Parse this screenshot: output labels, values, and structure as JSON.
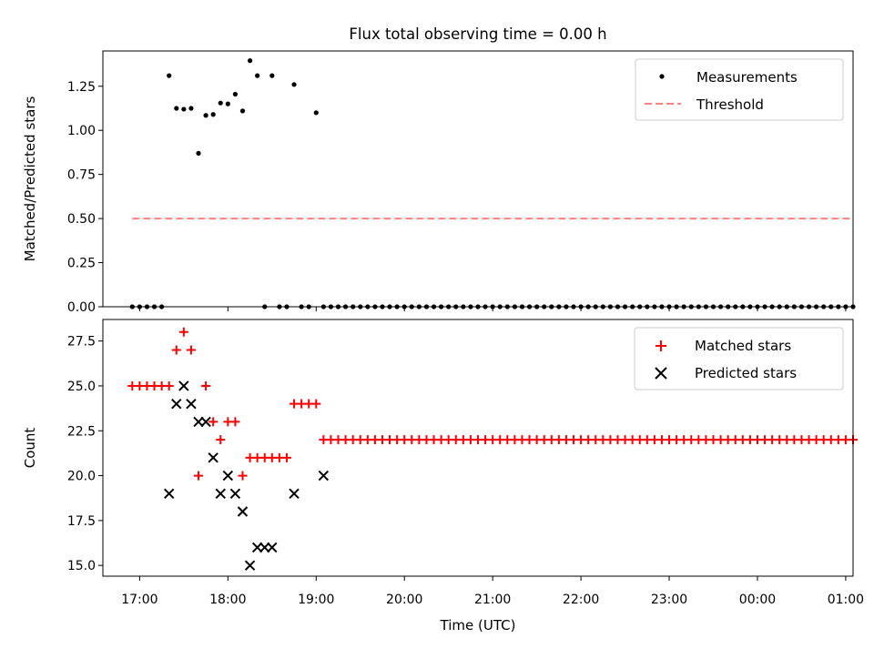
{
  "title": "Flux total observing time = 0.00 h",
  "chart_data": [
    {
      "type": "scatter",
      "ylabel": "Matched/Predicted stars",
      "ylim": [
        0,
        1.45
      ],
      "yticks": [
        "0.00",
        "0.25",
        "0.50",
        "0.75",
        "1.00",
        "1.25"
      ],
      "ytick_values": [
        0,
        0.25,
        0.5,
        0.75,
        1.0,
        1.25
      ],
      "xlim": [
        "16:35",
        "1:05"
      ],
      "legend_position": "upper right",
      "legend": [
        {
          "label": "Measurements",
          "marker": "dot",
          "color": "#000000"
        },
        {
          "label": "Threshold",
          "marker": "dashed-line",
          "color": "#ff8080"
        }
      ],
      "threshold": {
        "value": 0.5,
        "x_start": "16:55",
        "x_end": "1:05"
      },
      "measurements": {
        "x": [
          "16:55",
          "17:00",
          "17:05",
          "17:10",
          "17:15",
          "17:20",
          "17:25",
          "17:30",
          "17:35",
          "17:40",
          "17:45",
          "17:50",
          "17:55",
          "18:00",
          "18:05",
          "18:10",
          "18:15",
          "18:20",
          "18:25",
          "18:30",
          "18:35",
          "18:40",
          "18:45",
          "18:50",
          "18:55",
          "19:00",
          "19:05",
          "19:10",
          "19:15",
          "19:20",
          "19:25",
          "19:30",
          "19:35",
          "19:40",
          "19:45",
          "19:50",
          "19:55",
          "20:00",
          "20:05",
          "20:10",
          "20:15",
          "20:20",
          "20:25",
          "20:30",
          "20:35",
          "20:40",
          "20:45",
          "20:50",
          "20:55",
          "21:00",
          "21:05",
          "21:10",
          "21:15",
          "21:20",
          "21:25",
          "21:30",
          "21:35",
          "21:40",
          "21:45",
          "21:50",
          "21:55",
          "22:00",
          "22:05",
          "22:10",
          "22:15",
          "22:20",
          "22:25",
          "22:30",
          "22:35",
          "22:40",
          "22:45",
          "22:50",
          "22:55",
          "23:00",
          "23:05",
          "23:10",
          "23:15",
          "23:20",
          "23:25",
          "23:30",
          "23:35",
          "23:40",
          "23:45",
          "23:50",
          "23:55",
          "0:00",
          "0:05",
          "0:10",
          "0:15",
          "0:20",
          "0:25",
          "0:30",
          "0:35",
          "0:40",
          "0:45",
          "0:50",
          "0:55",
          "1:00",
          "1:05"
        ],
        "y": [
          0,
          0,
          0,
          0,
          0,
          1.31,
          1.125,
          1.12,
          1.125,
          0.87,
          1.085,
          1.09,
          1.155,
          1.15,
          1.205,
          1.11,
          1.395,
          1.31,
          0,
          1.31,
          0,
          0,
          1.26,
          0,
          0,
          1.1,
          0,
          0,
          0,
          0,
          0,
          0,
          0,
          0,
          0,
          0,
          0,
          0,
          0,
          0,
          0,
          0,
          0,
          0,
          0,
          0,
          0,
          0,
          0,
          0,
          0,
          0,
          0,
          0,
          0,
          0,
          0,
          0,
          0,
          0,
          0,
          0,
          0,
          0,
          0,
          0,
          0,
          0,
          0,
          0,
          0,
          0,
          0,
          0,
          0,
          0,
          0,
          0,
          0,
          0,
          0,
          0,
          0,
          0,
          0,
          0,
          0,
          0,
          0,
          0,
          0,
          0,
          0,
          0,
          0,
          0,
          0,
          0,
          0
        ]
      }
    },
    {
      "type": "scatter",
      "xlabel": "Time (UTC)",
      "ylabel": "Count",
      "ylim": [
        14.4,
        28.7
      ],
      "yticks": [
        "15.0",
        "17.5",
        "20.0",
        "22.5",
        "25.0",
        "27.5"
      ],
      "ytick_values": [
        15.0,
        17.5,
        20.0,
        22.5,
        25.0,
        27.5
      ],
      "xlim": [
        "16:35",
        "1:05"
      ],
      "xticks": [
        "17:00",
        "18:00",
        "19:00",
        "20:00",
        "21:00",
        "22:00",
        "23:00",
        "00:00",
        "01:00"
      ],
      "legend_position": "upper right",
      "series": [
        {
          "name": "Matched stars",
          "marker": "plus",
          "color": "#ff0000",
          "x": [
            "16:55",
            "17:00",
            "17:05",
            "17:10",
            "17:15",
            "17:20",
            "17:25",
            "17:30",
            "17:35",
            "17:40",
            "17:45",
            "17:50",
            "17:55",
            "18:00",
            "18:05",
            "18:10",
            "18:15",
            "18:20",
            "18:25",
            "18:30",
            "18:35",
            "18:40",
            "18:45",
            "18:50",
            "18:55",
            "19:00",
            "19:05",
            "19:10",
            "19:15",
            "19:20",
            "19:25",
            "19:30",
            "19:35",
            "19:40",
            "19:45",
            "19:50",
            "19:55",
            "20:00",
            "20:05",
            "20:10",
            "20:15",
            "20:20",
            "20:25",
            "20:30",
            "20:35",
            "20:40",
            "20:45",
            "20:50",
            "20:55",
            "21:00",
            "21:05",
            "21:10",
            "21:15",
            "21:20",
            "21:25",
            "21:30",
            "21:35",
            "21:40",
            "21:45",
            "21:50",
            "21:55",
            "22:00",
            "22:05",
            "22:10",
            "22:15",
            "22:20",
            "22:25",
            "22:30",
            "22:35",
            "22:40",
            "22:45",
            "22:50",
            "22:55",
            "23:00",
            "23:05",
            "23:10",
            "23:15",
            "23:20",
            "23:25",
            "23:30",
            "23:35",
            "23:40",
            "23:45",
            "23:50",
            "23:55",
            "0:00",
            "0:05",
            "0:10",
            "0:15",
            "0:20",
            "0:25",
            "0:30",
            "0:35",
            "0:40",
            "0:45",
            "0:50",
            "0:55",
            "1:00",
            "1:05"
          ],
          "y": [
            25,
            25,
            25,
            25,
            25,
            25,
            27,
            28,
            27,
            20,
            25,
            23,
            22,
            23,
            23,
            20,
            21,
            21,
            21,
            21,
            21,
            21,
            24,
            24,
            24,
            24,
            22,
            22,
            22,
            22,
            22,
            22,
            22,
            22,
            22,
            22,
            22,
            22,
            22,
            22,
            22,
            22,
            22,
            22,
            22,
            22,
            22,
            22,
            22,
            22,
            22,
            22,
            22,
            22,
            22,
            22,
            22,
            22,
            22,
            22,
            22,
            22,
            22,
            22,
            22,
            22,
            22,
            22,
            22,
            22,
            22,
            22,
            22,
            22,
            22,
            22,
            22,
            22,
            22,
            22,
            22,
            22,
            22,
            22,
            22,
            22,
            22,
            22,
            22,
            22,
            22,
            22,
            22,
            22,
            22,
            22,
            22,
            22,
            22
          ]
        },
        {
          "name": "Predicted stars",
          "marker": "x",
          "color": "#000000",
          "x": [
            "17:20",
            "17:25",
            "17:30",
            "17:35",
            "17:40",
            "17:45",
            "17:50",
            "17:55",
            "18:00",
            "18:05",
            "18:10",
            "18:15",
            "18:20",
            "18:25",
            "18:30",
            "18:45",
            "19:05"
          ],
          "y": [
            19,
            24,
            25,
            24,
            23,
            23,
            21,
            19,
            20,
            19,
            18,
            15,
            16,
            16,
            16,
            19,
            20
          ]
        }
      ]
    }
  ]
}
